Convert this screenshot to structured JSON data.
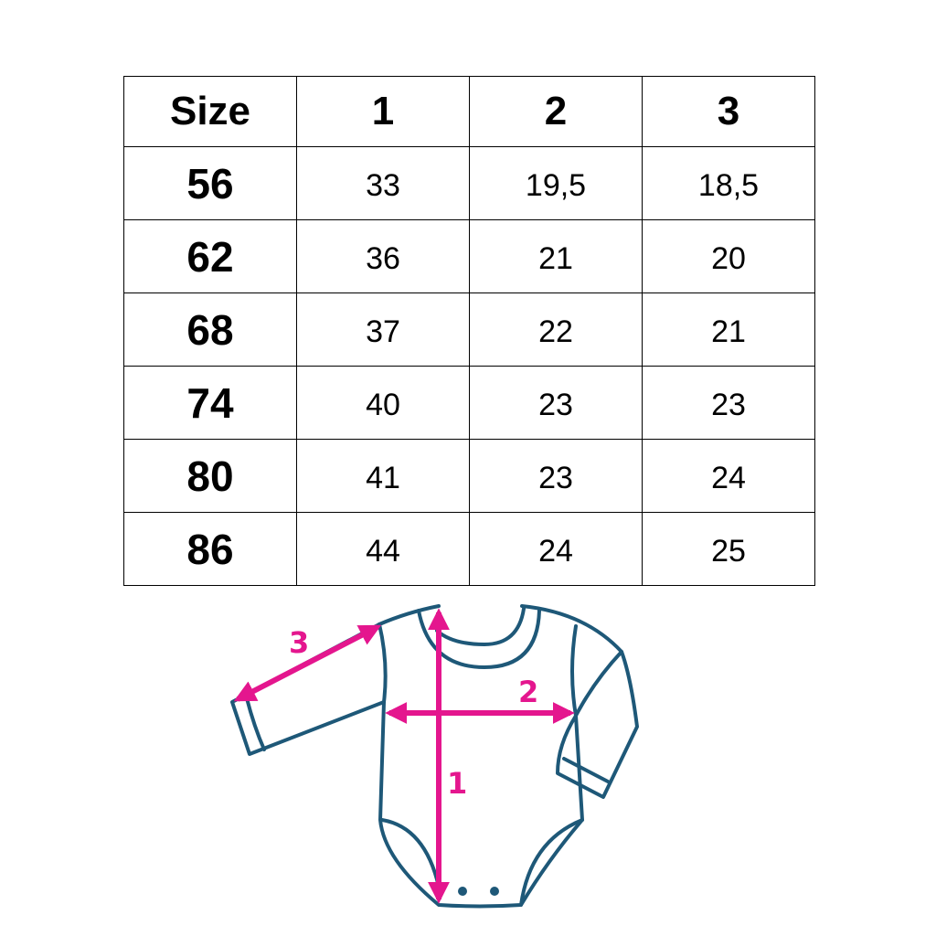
{
  "table": {
    "header": [
      "Size",
      "1",
      "2",
      "3"
    ],
    "rows": [
      [
        "56",
        "33",
        "19,5",
        "18,5"
      ],
      [
        "62",
        "36",
        "21",
        "20"
      ],
      [
        "68",
        "37",
        "22",
        "21"
      ],
      [
        "74",
        "40",
        "23",
        "23"
      ],
      [
        "80",
        "41",
        "23",
        "24"
      ],
      [
        "86",
        "44",
        "24",
        "25"
      ]
    ]
  },
  "diagram": {
    "labels": {
      "length": "1",
      "chest": "2",
      "sleeve": "3"
    },
    "colors": {
      "outline": "#1e5878",
      "arrow": "#e4168e"
    }
  }
}
